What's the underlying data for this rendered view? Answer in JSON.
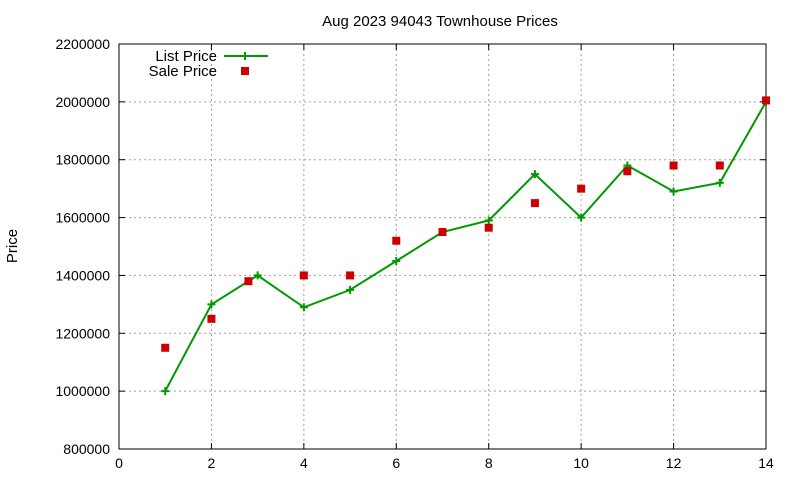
{
  "chart_data": {
    "type": "line",
    "title": "Aug 2023 94043 Townhouse Prices",
    "xlabel": "",
    "ylabel": "Price",
    "xlim": [
      0,
      14
    ],
    "ylim": [
      800000,
      2200000
    ],
    "x_ticks": [
      0,
      2,
      4,
      6,
      8,
      10,
      12,
      14
    ],
    "y_ticks": [
      800000,
      1000000,
      1200000,
      1400000,
      1600000,
      1800000,
      2000000,
      2200000
    ],
    "grid": true,
    "legend_position": "top-left",
    "series": [
      {
        "name": "List Price",
        "style": "line-plus",
        "color": "#009900",
        "points": [
          [
            1,
            1000000
          ],
          [
            2,
            1300000
          ],
          [
            3,
            1400000
          ],
          [
            4,
            1290000
          ],
          [
            5,
            1350000
          ],
          [
            6,
            1450000
          ],
          [
            7,
            1550000
          ],
          [
            8,
            1590000
          ],
          [
            9,
            1750000
          ],
          [
            10,
            1600000
          ],
          [
            11,
            1780000
          ],
          [
            12,
            1690000
          ],
          [
            13,
            1720000
          ],
          [
            14,
            2000000
          ]
        ]
      },
      {
        "name": "Sale Price",
        "style": "square",
        "color": "#cc0000",
        "points": [
          [
            1,
            1150000
          ],
          [
            2,
            1250000
          ],
          [
            2.8,
            1380000
          ],
          [
            4,
            1400000
          ],
          [
            5,
            1400000
          ],
          [
            6,
            1520000
          ],
          [
            7,
            1550000
          ],
          [
            8,
            1565000
          ],
          [
            9,
            1650000
          ],
          [
            10,
            1700000
          ],
          [
            11,
            1760000
          ],
          [
            12,
            1780000
          ],
          [
            13,
            1780000
          ],
          [
            14,
            2005000
          ]
        ]
      }
    ]
  }
}
